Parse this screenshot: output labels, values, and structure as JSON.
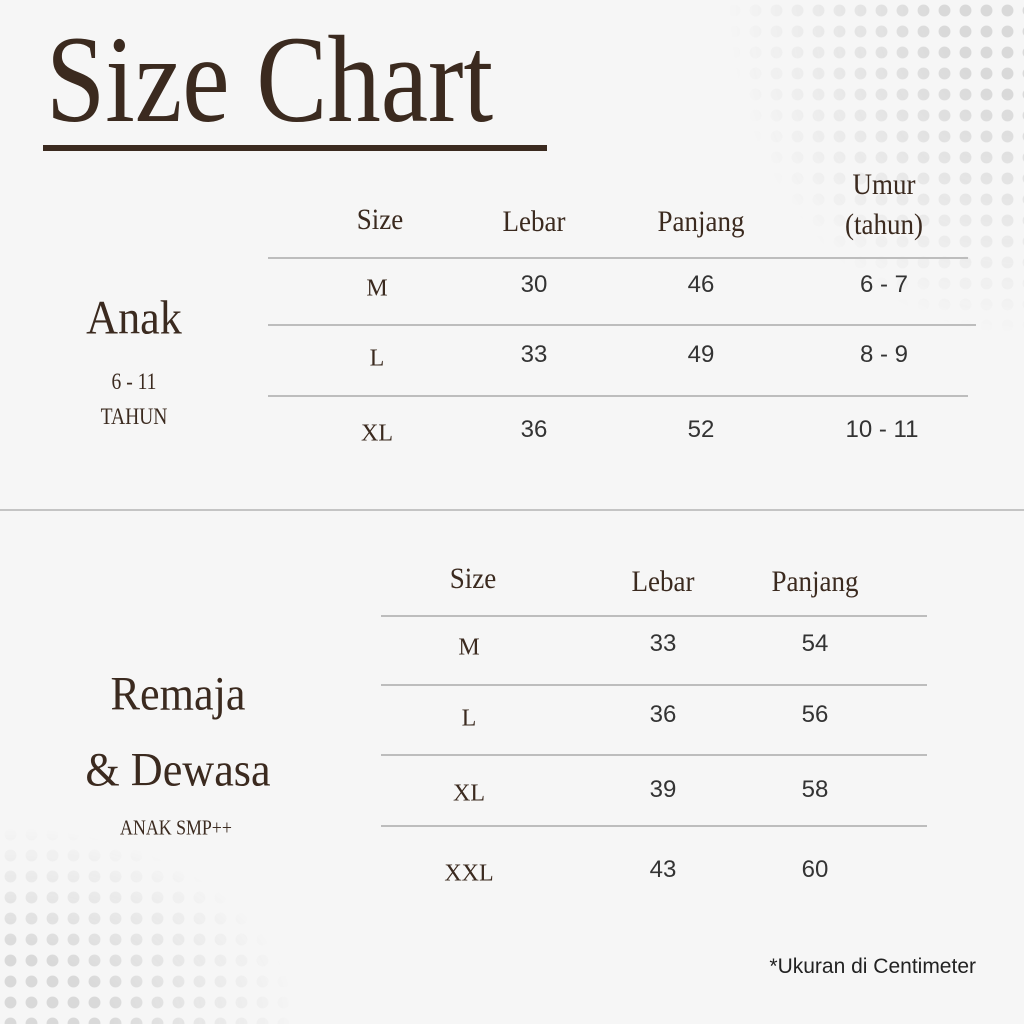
{
  "title": "Size Chart",
  "colors": {
    "brand": "#3b2a1f",
    "background": "#f6f6f6",
    "rule": "#bdbdbd"
  },
  "anak": {
    "label": "Anak",
    "age_range": "6 - 11",
    "age_unit": "TAHUN",
    "headers": [
      "Size",
      "Lebar",
      "Panjang",
      "Umur",
      "(tahun)"
    ],
    "rows": [
      {
        "size": "M",
        "lebar": "30",
        "panjang": "46",
        "umur": "6 - 7"
      },
      {
        "size": "L",
        "lebar": "33",
        "panjang": "49",
        "umur": "8 - 9"
      },
      {
        "size": "XL",
        "lebar": "36",
        "panjang": "52",
        "umur": "10 - 11"
      }
    ]
  },
  "dewasa": {
    "label_line1": "Remaja",
    "label_line2": "& Dewasa",
    "sublabel": "ANAK SMP++",
    "headers": [
      "Size",
      "Lebar",
      "Panjang"
    ],
    "rows": [
      {
        "size": "M",
        "lebar": "33",
        "panjang": "54"
      },
      {
        "size": "L",
        "lebar": "36",
        "panjang": "56"
      },
      {
        "size": "XL",
        "lebar": "39",
        "panjang": "58"
      },
      {
        "size": "XXL",
        "lebar": "43",
        "panjang": "60"
      }
    ]
  },
  "footnote": "*Ukuran di Centimeter"
}
